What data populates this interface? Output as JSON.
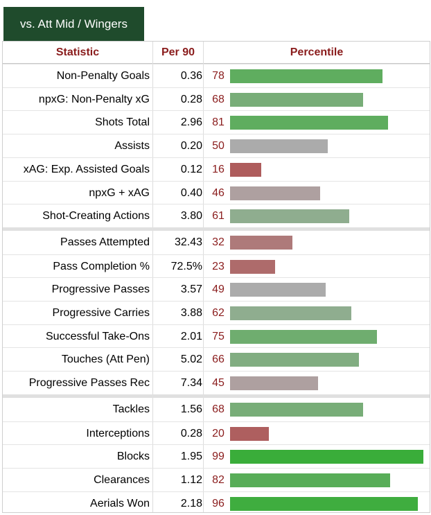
{
  "tab": {
    "label": "vs. Att Mid / Wingers"
  },
  "headers": {
    "statistic": "Statistic",
    "per90": "Per 90",
    "percentile": "Percentile"
  },
  "groups": [
    [
      {
        "stat": "Non-Penalty Goals",
        "per90": "0.36",
        "pct": 78,
        "color": "#5fad5f"
      },
      {
        "stat": "npxG: Non-Penalty xG",
        "per90": "0.28",
        "pct": 68,
        "color": "#78ad78"
      },
      {
        "stat": "Shots Total",
        "per90": "2.96",
        "pct": 81,
        "color": "#5fad5f"
      },
      {
        "stat": "Assists",
        "per90": "0.20",
        "pct": 50,
        "color": "#ababab"
      },
      {
        "stat": "xAG: Exp. Assisted Goals",
        "per90": "0.12",
        "pct": 16,
        "color": "#ae5c5c"
      },
      {
        "stat": "npxG + xAG",
        "per90": "0.40",
        "pct": 46,
        "color": "#aea0a0"
      },
      {
        "stat": "Shot-Creating Actions",
        "per90": "3.80",
        "pct": 61,
        "color": "#8fad8f"
      }
    ],
    [
      {
        "stat": "Passes Attempted",
        "per90": "32.43",
        "pct": 32,
        "color": "#ae7a7a"
      },
      {
        "stat": "Pass Completion %",
        "per90": "72.5%",
        "pct": 23,
        "color": "#ae6b6b"
      },
      {
        "stat": "Progressive Passes",
        "per90": "3.57",
        "pct": 49,
        "color": "#ababab"
      },
      {
        "stat": "Progressive Carries",
        "per90": "3.88",
        "pct": 62,
        "color": "#8fad8f"
      },
      {
        "stat": "Successful Take-Ons",
        "per90": "2.01",
        "pct": 75,
        "color": "#6fad6f"
      },
      {
        "stat": "Touches (Att Pen)",
        "per90": "5.02",
        "pct": 66,
        "color": "#81ad81"
      },
      {
        "stat": "Progressive Passes Rec",
        "per90": "7.34",
        "pct": 45,
        "color": "#aea0a0"
      }
    ],
    [
      {
        "stat": "Tackles",
        "per90": "1.56",
        "pct": 68,
        "color": "#78ad78"
      },
      {
        "stat": "Interceptions",
        "per90": "0.28",
        "pct": 20,
        "color": "#ae5f5f"
      },
      {
        "stat": "Blocks",
        "per90": "1.95",
        "pct": 99,
        "color": "#3aad3a"
      },
      {
        "stat": "Clearances",
        "per90": "1.12",
        "pct": 82,
        "color": "#58ad58"
      },
      {
        "stat": "Aerials Won",
        "per90": "2.18",
        "pct": 96,
        "color": "#3fad3f"
      }
    ]
  ]
}
